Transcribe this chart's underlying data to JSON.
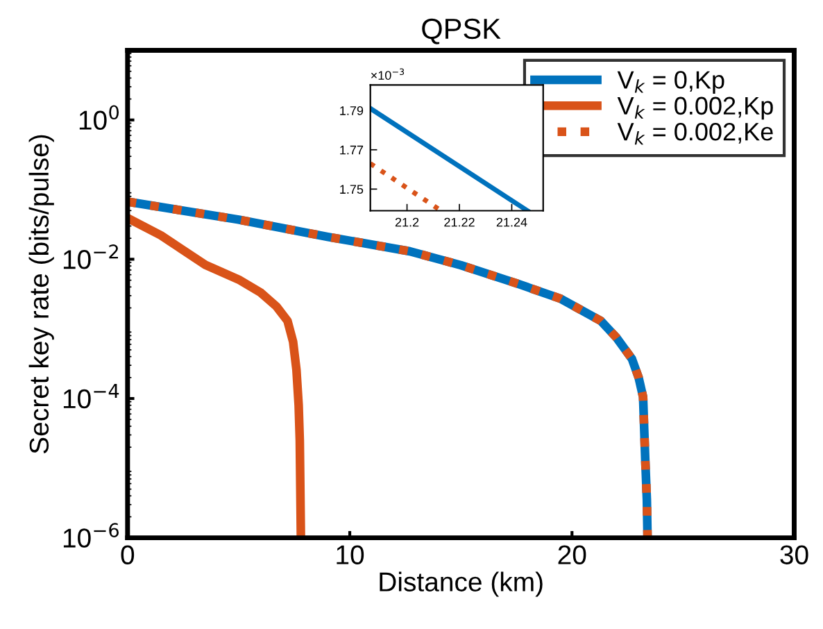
{
  "chart_data": [
    {
      "type": "line",
      "title": "QPSK",
      "xlabel": "Distance (km)",
      "ylabel": "Secret key rate (bits/pulse)",
      "log": "y",
      "xlim": [
        0,
        30
      ],
      "ylim": [
        1e-06,
        10
      ],
      "xticks": [
        0,
        10,
        20,
        30
      ],
      "yticks": [
        {
          "value": 1e-06,
          "label": "10$^{−6}$"
        },
        {
          "value": 0.0001,
          "label": "10$^{−4}$"
        },
        {
          "value": 0.01,
          "label": "10$^{−2}$"
        },
        {
          "value": 1,
          "label": "10$^{0}$"
        }
      ],
      "grid": false,
      "legend": "top right",
      "marker": "none",
      "series": [
        {
          "name": "V$_{k}$ = 0,Kp",
          "color": "#0072bd",
          "line_style": "solid",
          "x": [
            0,
            5,
            9,
            12.7,
            15,
            17.6,
            19.5,
            21.3,
            22,
            22.7,
            23.0,
            23.2,
            23.3,
            23.37,
            23.4
          ],
          "values": [
            0.067,
            0.037,
            0.021,
            0.013,
            0.0082,
            0.0044,
            0.0027,
            0.0013,
            0.00075,
            0.00037,
            0.0002,
            0.000105,
            1.26e-05,
            3.5e-06,
            1e-06
          ]
        },
        {
          "name": "V$_{k}$ = 0.002,Kp",
          "color": "#d95319",
          "line_style": "solid",
          "x": [
            0,
            1.5,
            3.5,
            5,
            6.0,
            6.7,
            7.2,
            7.45,
            7.6,
            7.7,
            7.75,
            7.8
          ],
          "values": [
            0.039,
            0.022,
            0.0083,
            0.0051,
            0.0033,
            0.0021,
            0.0013,
            0.00065,
            0.00026,
            8e-05,
            2.5e-05,
            1e-06
          ]
        },
        {
          "name": "V$_{k}$ = 0.002,Ke",
          "color": "#d95319",
          "line_style": "dotted",
          "x": [
            0,
            5,
            9,
            12.7,
            15,
            17.6,
            19.5,
            21.3,
            22,
            22.7,
            23.0,
            23.2,
            23.3,
            23.37,
            23.4
          ],
          "values": [
            0.067,
            0.037,
            0.021,
            0.013,
            0.0082,
            0.0044,
            0.0027,
            0.0013,
            0.00075,
            0.00037,
            0.0002,
            0.000105,
            1.26e-05,
            3.5e-06,
            1e-06
          ]
        }
      ]
    },
    {
      "type": "line",
      "xlim": [
        21.186,
        21.252
      ],
      "ylim": [
        1.739,
        1.803
      ],
      "xticks": [
        21.2,
        21.22,
        21.24
      ],
      "yticks": [
        1.75,
        1.77,
        1.79
      ],
      "grid": false,
      "legend": false,
      "marker": "none",
      "annotations": [
        "×10$^{−3}$"
      ],
      "series": [
        {
          "color": "#0072bd",
          "line_style": "solid",
          "x": [
            21.186,
            21.246
          ],
          "values": [
            1.791,
            1.739
          ]
        },
        {
          "color": "#d95319",
          "line_style": "dotted",
          "x": [
            21.186,
            21.213
          ],
          "values": [
            1.763,
            1.739
          ]
        }
      ]
    }
  ]
}
